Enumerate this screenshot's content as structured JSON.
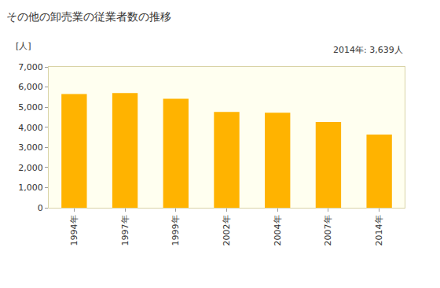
{
  "chart_data": {
    "type": "bar",
    "title": "その他の卸売業の従業者数の推移",
    "y_label": "[人]",
    "annotation": "2014年: 3,639人",
    "categories": [
      "1994年",
      "1997年",
      "1999年",
      "2002年",
      "2004年",
      "2007年",
      "2014年"
    ],
    "values": [
      5650,
      5700,
      5420,
      4760,
      4720,
      4260,
      3639
    ],
    "color": "#ffb300",
    "ylim": [
      0,
      7000
    ],
    "yticks": [
      0,
      {
        "value": 1000,
        "label": "1,000"
      },
      {
        "value": 2000,
        "label": "2,000"
      },
      {
        "value": 3000,
        "label": "3,000"
      },
      {
        "value": 4000,
        "label": "4,000"
      },
      {
        "value": 5000,
        "label": "5,000"
      },
      {
        "value": 6000,
        "label": "6,000"
      },
      {
        "value": 7000,
        "label": "7,000"
      }
    ],
    "grid": false
  }
}
